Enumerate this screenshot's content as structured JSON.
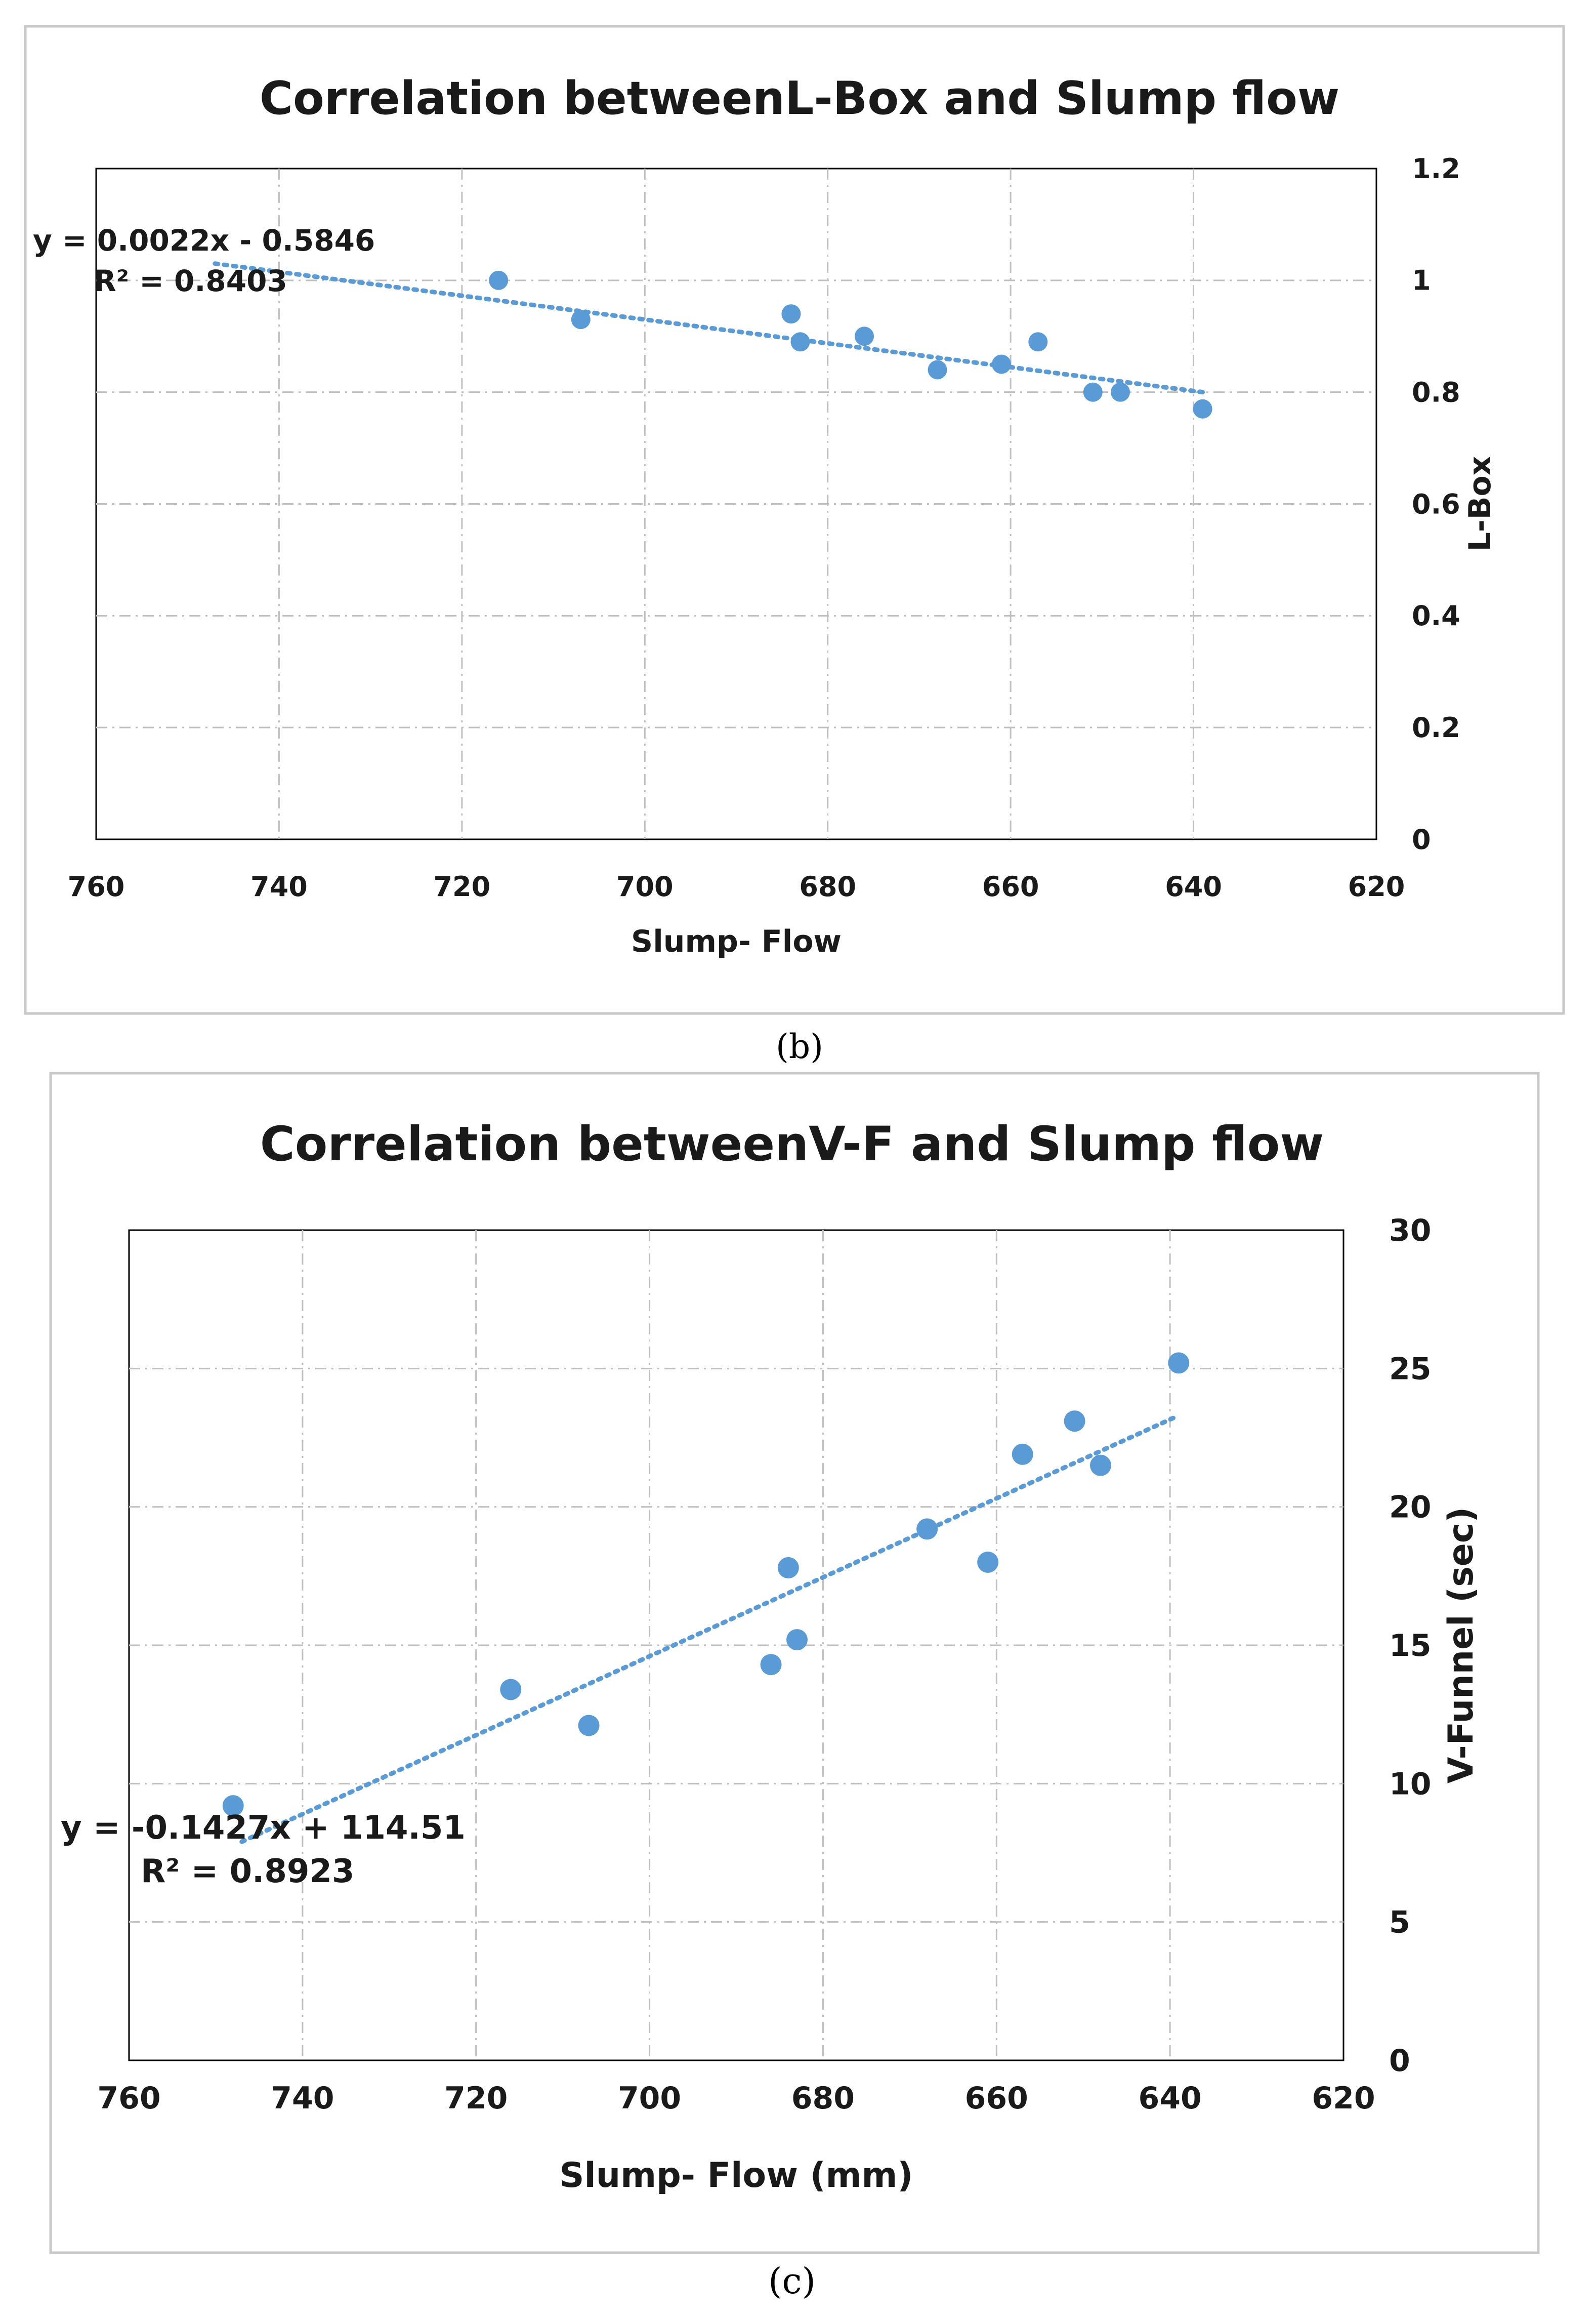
{
  "chart_data": [
    {
      "id": "b",
      "type": "scatter",
      "title": "Correlation betweenL-Box and Slump flow",
      "xlabel": "Slump- Flow",
      "ylabel": "L-Box",
      "xlim": [
        760,
        620
      ],
      "ylim": [
        0,
        1.2
      ],
      "xticks": [
        "760",
        "740",
        "720",
        "700",
        "680",
        "660",
        "640",
        "620"
      ],
      "yticks": [
        "0",
        "0.2",
        "0.4",
        "0.6",
        "0.8",
        "1",
        "1.2"
      ],
      "x_reversed": true,
      "y_axis_side": "right",
      "grid": true,
      "points": [
        {
          "x": 716,
          "y": 1.0
        },
        {
          "x": 707,
          "y": 0.93
        },
        {
          "x": 684,
          "y": 0.94
        },
        {
          "x": 683,
          "y": 0.89
        },
        {
          "x": 676,
          "y": 0.9
        },
        {
          "x": 668,
          "y": 0.84
        },
        {
          "x": 661,
          "y": 0.85
        },
        {
          "x": 657,
          "y": 0.89
        },
        {
          "x": 651,
          "y": 0.8
        },
        {
          "x": 648,
          "y": 0.8
        },
        {
          "x": 639,
          "y": 0.77
        }
      ],
      "trendline": {
        "type": "linear",
        "x_range": [
          747,
          639
        ],
        "y_range": [
          1.03,
          0.8
        ]
      },
      "equation": "y = 0.0022x - 0.5846",
      "r2": "R² = 0.8403",
      "caption": "(b)"
    },
    {
      "id": "c",
      "type": "scatter",
      "title": "Correlation betweenV-F and Slump flow",
      "xlabel": "Slump- Flow (mm)",
      "ylabel": "V-Funnel (sec)",
      "xlim": [
        760,
        620
      ],
      "ylim": [
        0,
        30
      ],
      "xticks": [
        "760",
        "740",
        "720",
        "700",
        "680",
        "660",
        "640",
        "620"
      ],
      "yticks": [
        "0",
        "5",
        "10",
        "15",
        "20",
        "25",
        "30"
      ],
      "x_reversed": true,
      "y_axis_side": "right",
      "grid": true,
      "points": [
        {
          "x": 748,
          "y": 9.2
        },
        {
          "x": 716,
          "y": 13.4
        },
        {
          "x": 707,
          "y": 12.1
        },
        {
          "x": 686,
          "y": 14.3
        },
        {
          "x": 684,
          "y": 17.8
        },
        {
          "x": 683,
          "y": 15.2
        },
        {
          "x": 668,
          "y": 19.2
        },
        {
          "x": 661,
          "y": 18.0
        },
        {
          "x": 657,
          "y": 21.9
        },
        {
          "x": 651,
          "y": 23.1
        },
        {
          "x": 648,
          "y": 21.5
        },
        {
          "x": 639,
          "y": 25.2
        }
      ],
      "trendline": {
        "type": "linear",
        "x_range": [
          747,
          639
        ],
        "y_range": [
          7.9,
          23.3
        ]
      },
      "equation": "y = -0.1427x + 114.51",
      "r2": "R² = 0.8923",
      "caption": "(c)"
    }
  ],
  "colors": {
    "marker": "#5b9bd5",
    "trendline": "#5b9bd5",
    "grid": "#bfbfbf",
    "frame": "#c8c8c8",
    "text": "#1a1a1a"
  }
}
